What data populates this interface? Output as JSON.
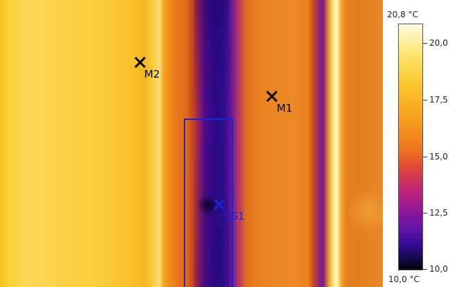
{
  "markers": {
    "m1": {
      "label": "M1",
      "icon": "crosshair-icon",
      "color": "#000000"
    },
    "m2": {
      "label": "M2",
      "icon": "crosshair-icon",
      "color": "#000000"
    },
    "cs1": {
      "label": "CS1",
      "icon": "crosshair-icon",
      "color": "#1a23d8"
    }
  },
  "scale": {
    "max_label": "20,8 °C",
    "min_label": "10,0 °C",
    "ticks": [
      "20,0",
      "17,5",
      "15,0",
      "12,5",
      "10,0"
    ],
    "palette": "iron"
  }
}
